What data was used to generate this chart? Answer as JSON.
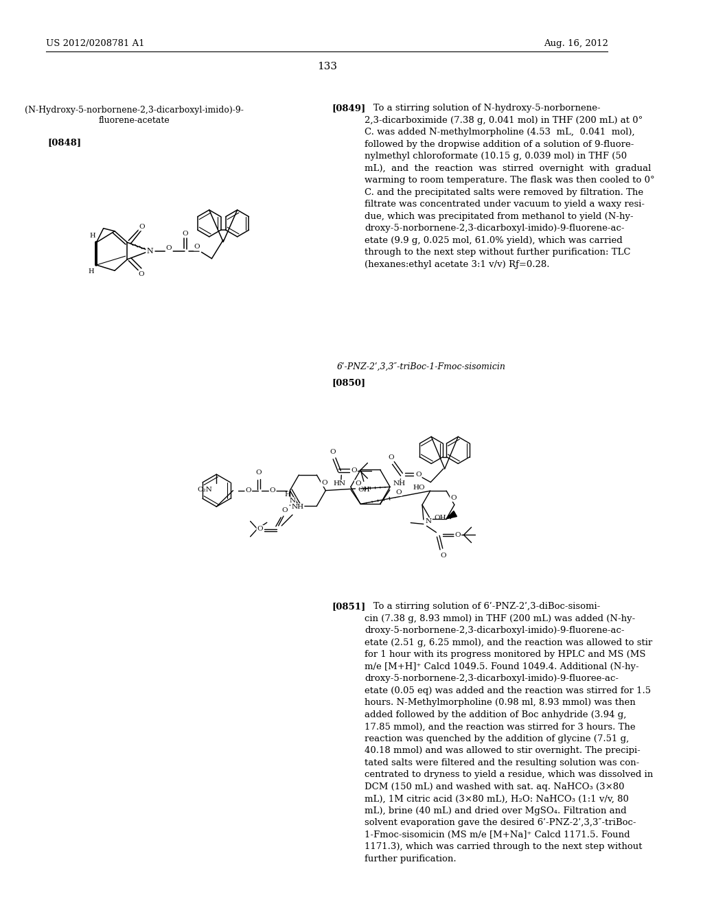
{
  "bg": "#ffffff",
  "header_left": "US 2012/0208781 A1",
  "header_right": "Aug. 16, 2012",
  "page_num": "133",
  "compound1_title": "(N-Hydroxy-5-norbornene-2,3-dicarboxyl-imido)-9-\nfluorene-acetate",
  "label0848": "[0848]",
  "label0849": "[0849]",
  "text0849": "   To a stirring solution of N-hydroxy-5-norbornene-\n2,3-dicarboximide (7.38 g, 0.041 mol) in THF (200 mL) at 0°\nC. was added N-methylmorpholine (4.53  mL,  0.041  mol),\nfollowed by the dropwise addition of a solution of 9-fluore-\nnylmethyl chloroformate (10.15 g, 0.039 mol) in THF (50\nmL),  and  the  reaction  was  stirred  overnight  with  gradual\nwarming to room temperature. The flask was then cooled to 0°\nC. and the precipitated salts were removed by filtration. The\nfiltrate was concentrated under vacuum to yield a waxy resi-\ndue, which was precipitated from methanol to yield (N-hy-\ndroxy-5-norbornene-2,3-dicarboxyl-imido)-9-fluorene-ac-\netate (9.9 g, 0.025 mol, 61.0% yield), which was carried\nthrough to the next step without further purification: TLC\n(hexanes:ethyl acetate 3:1 v/v) Rƒ=0.28.",
  "compound2_title": "6ʹ-PNZ-2ʹ,3,3″-triBoc-1-Fmoc-sisomicin",
  "label0850": "[0850]",
  "label0851": "[0851]",
  "text0851": "   To a stirring solution of 6ʹ-PNZ-2ʹ,3-diBoc-sisomi-\ncin (7.38 g, 8.93 mmol) in THF (200 mL) was added (N-hy-\ndroxy-5-norbornene-2,3-dicarboxyl-imido)-9-fluorene-ac-\netate (2.51 g, 6.25 mmol), and the reaction was allowed to stir\nfor 1 hour with its progress monitored by HPLC and MS (MS\nm/e [M+H]⁺ Calcd 1049.5. Found 1049.4. Additional (N-hy-\ndroxy-5-norbornene-2,3-dicarboxyl-imido)-9-fluoree-ac-\netate (0.05 eq) was added and the reaction was stirred for 1.5\nhours. N-Methylmorpholine (0.98 ml, 8.93 mmol) was then\nadded followed by the addition of Boc anhydride (3.94 g,\n17.85 mmol), and the reaction was stirred for 3 hours. The\nreaction was quenched by the addition of glycine (7.51 g,\n40.18 mmol) and was allowed to stir overnight. The precipi-\ntated salts were filtered and the resulting solution was con-\ncentrated to dryness to yield a residue, which was dissolved in\nDCM (150 mL) and washed with sat. aq. NaHCO₃ (3×80\nmL), 1M citric acid (3×80 mL), H₂O: NaHCO₃ (1:1 v/v, 80\nmL), brine (40 mL) and dried over MgSO₄. Filtration and\nsolvent evaporation gave the desired 6ʹ-PNZ-2ʹ,3,3″-triBoc-\n1-Fmoc-sisomicin (MS m/e [M+Na]⁺ Calcd 1171.5. Found\n1171.3), which was carried through to the next step without\nfurther purification."
}
